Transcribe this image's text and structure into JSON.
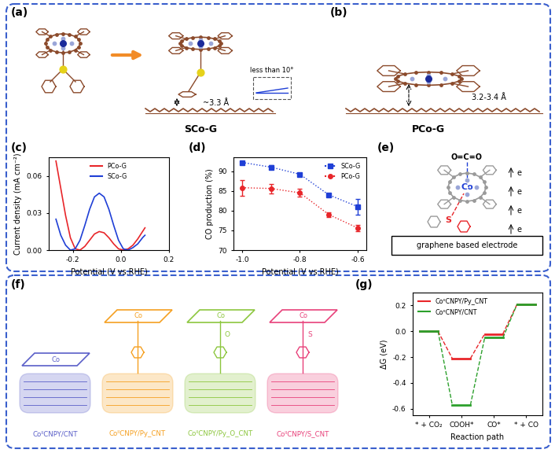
{
  "chart_data": [
    {
      "type": "line",
      "annotations": [
        "(c)"
      ],
      "x_label": "Potential (V vs.RHE)",
      "y_label": "Current density (mA cm⁻²)",
      "x": [
        -0.27,
        -0.25,
        -0.23,
        -0.21,
        -0.19,
        -0.17,
        -0.15,
        -0.13,
        -0.11,
        -0.09,
        -0.07,
        -0.05,
        -0.03,
        -0.01,
        0.01,
        0.03,
        0.05,
        0.07,
        0.09,
        0.1
      ],
      "series": [
        {
          "name": "PCo-G",
          "color": "#e8262a",
          "line_style": "solid",
          "values": [
            0.072,
            0.05,
            0.028,
            0.01,
            0.001,
            0.0,
            0.003,
            0.008,
            0.013,
            0.015,
            0.014,
            0.01,
            0.005,
            0.001,
            0.0,
            0.001,
            0.004,
            0.009,
            0.015,
            0.018
          ]
        },
        {
          "name": "SCo-G",
          "color": "#1f3fd6",
          "line_style": "solid",
          "values": [
            0.025,
            0.012,
            0.004,
            0.0,
            0.001,
            0.008,
            0.02,
            0.033,
            0.043,
            0.046,
            0.043,
            0.033,
            0.02,
            0.008,
            0.001,
            0.0,
            0.002,
            0.005,
            0.01,
            0.012
          ]
        }
      ],
      "xlim": [
        -0.3,
        0.2
      ],
      "xticks": [
        -0.2,
        {
          "value": 0,
          "label": "0.0"
        },
        0.2
      ],
      "ylim": [
        0,
        0.075
      ],
      "yticks": [
        {
          "value": 0,
          "label": "0.00"
        },
        0.03,
        0.06
      ],
      "legend": "upper center"
    },
    {
      "type": "line",
      "annotations": [
        "(d)"
      ],
      "x_label": "Potential (V vs.RHE)",
      "y_label": "CO production (%)",
      "x": [
        -1.0,
        -0.9,
        -0.8,
        -0.7,
        -0.6
      ],
      "series": [
        {
          "name": "SCo-G",
          "color": "#1f3fd6",
          "marker": "square",
          "line_style": "dotted",
          "values": [
            92.2,
            91.0,
            89.2,
            84.0,
            81.0
          ],
          "errors": [
            0.3,
            0.5,
            0.4,
            0.3,
            2.0
          ]
        },
        {
          "name": "PCo-G",
          "color": "#e8262a",
          "marker": "circle",
          "line_style": "dotted",
          "values": [
            85.8,
            85.6,
            84.5,
            79.0,
            75.6
          ],
          "errors": [
            2.0,
            1.2,
            1.0,
            0.6,
            0.8
          ]
        }
      ],
      "xlim": [
        -1.03,
        -0.57
      ],
      "xticks": [
        -1.0,
        -0.8,
        -0.6
      ],
      "ylim": [
        70,
        93.5
      ],
      "yticks": [
        70,
        75,
        80,
        85,
        90
      ],
      "legend": "upper right"
    },
    {
      "type": "energy_levels",
      "annotations": [
        "(g)"
      ],
      "x_label": "Reaction path",
      "y_label": "ΔG (eV)",
      "categories": [
        "* + CO₂",
        "COOH*",
        "CO*",
        "* + CO"
      ],
      "series": [
        {
          "name": "CoᴵᴵCNPY/Py_CNT",
          "color": "#e8262a",
          "line_style": "dashed",
          "values": [
            0.0,
            -0.21,
            -0.02,
            0.21
          ]
        },
        {
          "name": "CoᴵᴵCNPY/CNT",
          "color": "#2ca02c",
          "line_style": "dashed",
          "values": [
            0.0,
            -0.57,
            -0.05,
            0.21
          ]
        }
      ],
      "ylim": [
        -0.65,
        0.3
      ],
      "yticks": [
        -0.6,
        -0.4,
        -0.2,
        {
          "value": 0,
          "label": "0.0"
        },
        0.2
      ],
      "legend": "upper left"
    }
  ],
  "panels": {
    "a": {
      "label": "(a)",
      "name": "SCo-G",
      "distance": "~3.3 Å",
      "angle": "less than 10°"
    },
    "b": {
      "label": "(b)",
      "name": "PCo-G",
      "distance": "3.2-3.4 Å"
    },
    "e": {
      "label": "(e)",
      "molecule": "O=C=O",
      "metal": "Co",
      "linker": "S",
      "electron": "e",
      "electrode": "graphene based electrode"
    },
    "f": {
      "label": "(f)",
      "metal": "Co",
      "structures": [
        {
          "name": "CoᴵᴵCNPY/CNT",
          "color": "#5a5fc8"
        },
        {
          "name": "CoᴵᴵCNPY/Py_CNT",
          "color": "#f5a021"
        },
        {
          "name": "CoᴵᴵCNPY/Py_O_CNT",
          "color": "#8cc63e",
          "atom": "O"
        },
        {
          "name": "CoᴵᴵCNPY/S_CNT",
          "color": "#e8417a",
          "atom": "S"
        }
      ]
    }
  }
}
